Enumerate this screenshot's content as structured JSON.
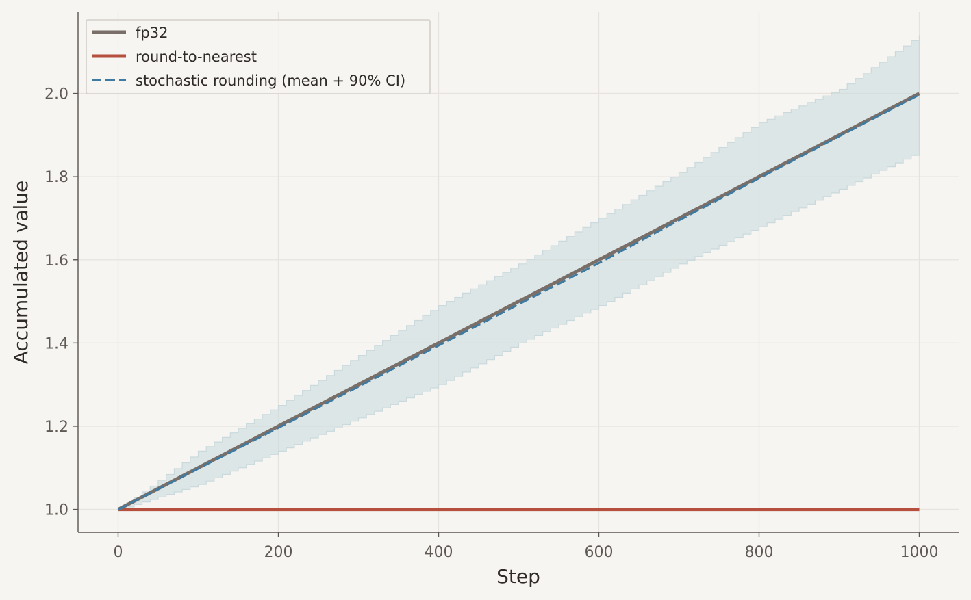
{
  "chart_data": {
    "type": "line",
    "title": "",
    "xlabel": "Step",
    "ylabel": "Accumulated value",
    "xlim": [
      -50,
      1050
    ],
    "ylim": [
      0.945,
      2.195
    ],
    "x_ticks": [
      0,
      200,
      400,
      600,
      800,
      1000
    ],
    "y_ticks": [
      1.0,
      1.2,
      1.4,
      1.6,
      1.8,
      2.0
    ],
    "x_tick_labels": [
      "0",
      "200",
      "400",
      "600",
      "800",
      "1000"
    ],
    "y_tick_labels": [
      "1.0",
      "1.2",
      "1.4",
      "1.6",
      "1.8",
      "2.0"
    ],
    "grid": true,
    "legend_position": "top-left",
    "series": [
      {
        "name": "fp32",
        "style": "solid",
        "color": "#7a6e68",
        "x": [
          0,
          1000
        ],
        "y": [
          1.0,
          2.0
        ]
      },
      {
        "name": "round-to-nearest",
        "style": "solid",
        "color": "#b5503e",
        "x": [
          0,
          1000
        ],
        "y": [
          1.0,
          1.0
        ]
      },
      {
        "name": "stochastic rounding (mean + 90% CI)",
        "style": "dashed",
        "color": "#3f7aa0",
        "band_color": "#c9d9dd",
        "x": [
          0,
          100,
          200,
          300,
          400,
          500,
          600,
          700,
          800,
          900,
          1000
        ],
        "y": [
          1.0,
          1.098,
          1.196,
          1.295,
          1.394,
          1.493,
          1.592,
          1.695,
          1.796,
          1.897,
          1.997
        ],
        "ci_lower": [
          1.0,
          1.06,
          1.14,
          1.22,
          1.3,
          1.4,
          1.49,
          1.59,
          1.68,
          1.77,
          1.86
        ],
        "ci_upper": [
          1.0,
          1.14,
          1.25,
          1.37,
          1.49,
          1.59,
          1.7,
          1.81,
          1.93,
          2.01,
          2.14
        ]
      }
    ]
  }
}
